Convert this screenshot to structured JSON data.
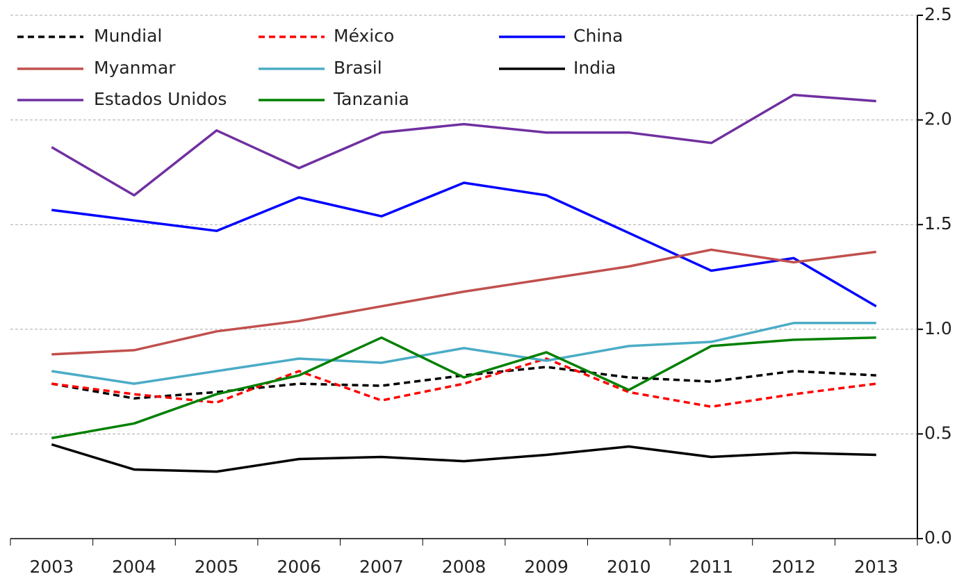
{
  "chart_data": {
    "type": "line",
    "categories": [
      "2003",
      "2004",
      "2005",
      "2006",
      "2007",
      "2008",
      "2009",
      "2010",
      "2011",
      "2012",
      "2013"
    ],
    "ylim": [
      0,
      2.5
    ],
    "yticks": [
      {
        "value": 0,
        "label": "0.0"
      },
      0.5,
      {
        "value": 1,
        "label": "1.0"
      },
      1.5,
      {
        "value": 2,
        "label": "2.0"
      },
      2.5
    ],
    "grid": true,
    "y_axis_side": "right",
    "series": [
      {
        "name": "Mundial",
        "color": "#000000",
        "dashed": true,
        "values": [
          0.74,
          0.67,
          0.7,
          0.74,
          0.73,
          0.78,
          0.82,
          0.77,
          0.75,
          0.8,
          0.78
        ]
      },
      {
        "name": "México",
        "color": "#ff0000",
        "dashed": true,
        "values": [
          0.74,
          0.69,
          0.65,
          0.8,
          0.66,
          0.74,
          0.86,
          0.7,
          0.63,
          0.69,
          0.74
        ]
      },
      {
        "name": "China",
        "color": "#0000ff",
        "dashed": false,
        "values": [
          1.57,
          1.52,
          1.47,
          1.63,
          1.54,
          1.7,
          1.64,
          1.46,
          1.28,
          1.34,
          1.11
        ]
      },
      {
        "name": "Myanmar",
        "color": "#c0504d",
        "dashed": false,
        "values": [
          0.88,
          0.9,
          0.99,
          1.04,
          1.11,
          1.18,
          1.24,
          1.3,
          1.38,
          1.32,
          1.37
        ]
      },
      {
        "name": "Brasil",
        "color": "#4bacc6",
        "dashed": false,
        "values": [
          0.8,
          0.74,
          0.8,
          0.86,
          0.84,
          0.91,
          0.85,
          0.92,
          0.94,
          1.03,
          1.03
        ]
      },
      {
        "name": "India",
        "color": "#000000",
        "dashed": false,
        "values": [
          0.45,
          0.33,
          0.32,
          0.38,
          0.39,
          0.37,
          0.4,
          0.44,
          0.39,
          0.41,
          0.4
        ]
      },
      {
        "name": "Estados Unidos",
        "color": "#7030a0",
        "dashed": false,
        "values": [
          1.87,
          1.64,
          1.95,
          1.77,
          1.94,
          1.98,
          1.94,
          1.94,
          1.89,
          2.12,
          2.09
        ]
      },
      {
        "name": "Tanzania",
        "color": "#008000",
        "dashed": false,
        "values": [
          0.48,
          0.55,
          0.69,
          0.78,
          0.96,
          0.77,
          0.89,
          0.71,
          0.92,
          0.95,
          0.96
        ]
      }
    ]
  }
}
